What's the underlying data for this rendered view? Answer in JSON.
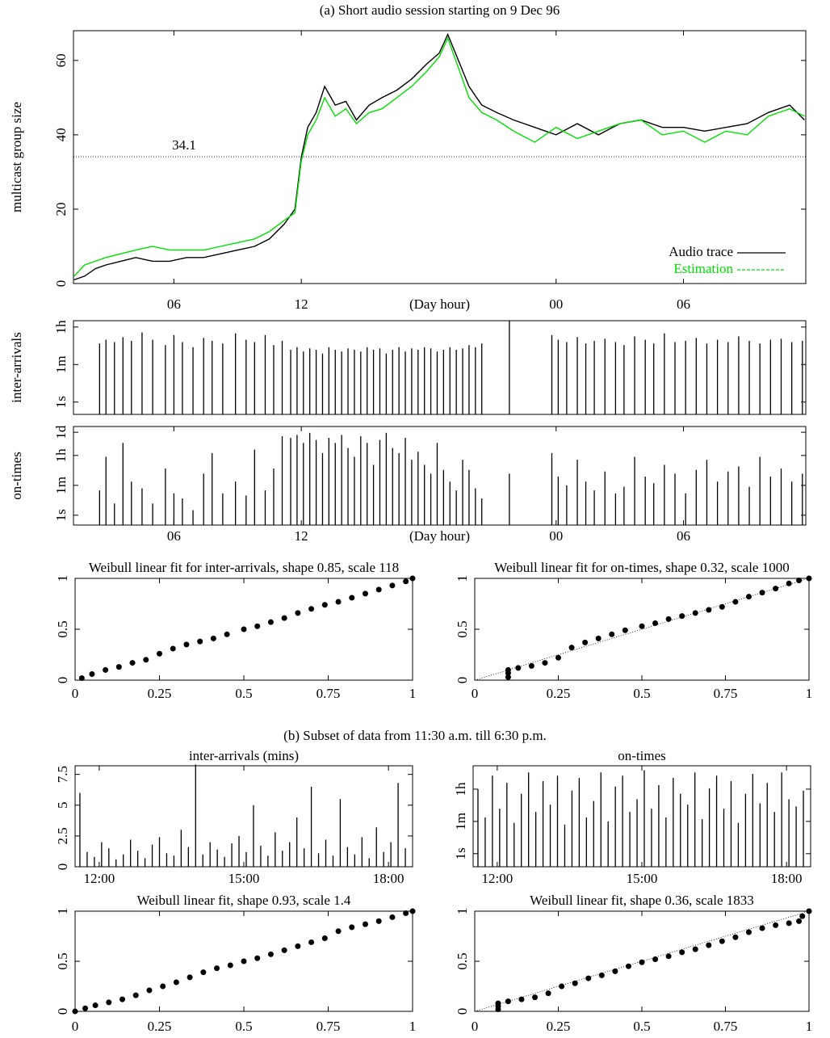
{
  "chart_data": [
    {
      "type": "line",
      "title": "(a) Short audio session starting on 9 Dec 96",
      "ylabel": "multicast group size",
      "xlabel": "(Day hour)",
      "x": [
        1.3,
        1.8,
        2.3,
        2.8,
        3.5,
        4.2,
        5,
        5.8,
        6.6,
        7.4,
        8.2,
        9,
        9.8,
        10.5,
        11.2,
        11.7,
        12,
        12.3,
        12.7,
        13.1,
        13.6,
        14.1,
        14.6,
        15.2,
        15.8,
        16.5,
        17.2,
        17.9,
        18.5,
        18.9,
        19.4,
        19.9,
        20.5,
        21.2,
        22,
        23,
        24,
        25,
        26,
        27,
        28,
        29,
        30,
        31,
        32,
        33,
        34,
        35,
        35.7
      ],
      "series": [
        {
          "name": "Audio trace",
          "color": "#000000",
          "values": [
            1,
            2,
            4,
            5,
            6,
            7,
            6,
            6,
            7,
            7,
            8,
            9,
            10,
            12,
            16,
            20,
            34,
            42,
            46,
            53,
            48,
            49,
            44,
            48,
            50,
            52,
            55,
            59,
            62,
            67,
            60,
            53,
            48,
            46,
            44,
            42,
            40,
            43,
            40,
            43,
            44,
            42,
            42,
            41,
            42,
            43,
            46,
            48,
            44
          ]
        },
        {
          "name": "Estimation",
          "color": "#00e000",
          "values": [
            2,
            5,
            6,
            7,
            8,
            9,
            10,
            9,
            9,
            9,
            10,
            11,
            12,
            14,
            17,
            19,
            33,
            40,
            44,
            50,
            45,
            47,
            43,
            46,
            47,
            50,
            53,
            57,
            61,
            66,
            58,
            50,
            46,
            44,
            41,
            38,
            42,
            39,
            41,
            43,
            44,
            40,
            41,
            38,
            41,
            40,
            45,
            47,
            45
          ]
        }
      ],
      "xlim": [
        1.27,
        35.76
      ],
      "ylim": [
        0,
        68
      ],
      "xticks": [
        {
          "value": 6,
          "label": "06"
        },
        12,
        {
          "value": 24,
          "label": "00"
        },
        {
          "value": 30,
          "label": "06"
        }
      ],
      "yticks": [
        0,
        20,
        40,
        60
      ],
      "hline": 34.1,
      "legend": "lower right"
    },
    {
      "type": "spike",
      "ylabel": "inter-arrivals",
      "log_y": true,
      "x": [
        2.5,
        2.8,
        3.2,
        3.6,
        4.0,
        4.5,
        5.0,
        5.6,
        6.0,
        6.4,
        6.9,
        7.4,
        7.8,
        8.3,
        8.9,
        9.4,
        9.8,
        10.3,
        10.7,
        11.1,
        11.5,
        11.8,
        12.1,
        12.4,
        12.7,
        13.0,
        13.3,
        13.6,
        13.9,
        14.2,
        14.5,
        14.8,
        15.1,
        15.4,
        15.7,
        16.0,
        16.3,
        16.6,
        16.9,
        17.2,
        17.5,
        17.8,
        18.1,
        18.4,
        18.7,
        19.0,
        19.3,
        19.6,
        19.9,
        20.2,
        20.5,
        21.8,
        23.8,
        24.1,
        24.5,
        25.0,
        25.4,
        25.8,
        26.3,
        26.8,
        27.2,
        27.7,
        28.2,
        28.6,
        29.1,
        29.6,
        30.1,
        30.6,
        31.1,
        31.6,
        32.1,
        32.6,
        33.1,
        33.6,
        34.1,
        34.6,
        35.1,
        35.6
      ],
      "values": [
        600,
        900,
        700,
        1200,
        800,
        2000,
        900,
        500,
        1500,
        700,
        400,
        1100,
        800,
        600,
        1800,
        900,
        700,
        1500,
        500,
        800,
        300,
        400,
        250,
        350,
        300,
        200,
        400,
        300,
        250,
        350,
        300,
        250,
        400,
        300,
        350,
        200,
        300,
        400,
        250,
        350,
        300,
        400,
        350,
        250,
        300,
        400,
        300,
        350,
        500,
        400,
        600,
        7000,
        1500,
        900,
        700,
        1200,
        600,
        800,
        1000,
        700,
        500,
        1300,
        900,
        600,
        1800,
        700,
        800,
        1100,
        600,
        900,
        700,
        1300,
        800,
        600,
        900,
        1000,
        700,
        800
      ],
      "xlim": [
        1.27,
        35.76
      ],
      "ylim": [
        0.26,
        7200
      ],
      "yticks": [
        {
          "value": 1,
          "label": "1s"
        },
        {
          "value": 60,
          "label": "1m"
        },
        {
          "value": 3600,
          "label": "1h"
        }
      ]
    },
    {
      "type": "spike",
      "ylabel": "on-times",
      "xlabel": "(Day hour)",
      "log_y": true,
      "x": [
        2.5,
        2.8,
        3.2,
        3.6,
        4.0,
        4.5,
        5.0,
        5.6,
        6.0,
        6.4,
        6.9,
        7.4,
        7.8,
        8.3,
        8.9,
        9.4,
        9.8,
        10.3,
        10.7,
        11.1,
        11.5,
        11.8,
        12.1,
        12.4,
        12.7,
        13.0,
        13.3,
        13.6,
        13.9,
        14.2,
        14.5,
        14.8,
        15.1,
        15.4,
        15.7,
        16.0,
        16.3,
        16.6,
        16.9,
        17.2,
        17.5,
        17.8,
        18.1,
        18.4,
        18.7,
        19.0,
        19.3,
        19.6,
        19.9,
        20.2,
        20.5,
        21.8,
        23.8,
        24.1,
        24.5,
        25.0,
        25.4,
        25.8,
        26.3,
        26.8,
        27.2,
        27.7,
        28.2,
        28.6,
        29.1,
        29.6,
        30.1,
        30.6,
        31.1,
        31.6,
        32.1,
        32.6,
        33.1,
        33.6,
        34.1,
        34.6,
        35.1,
        35.6
      ],
      "values": [
        30,
        3000,
        5,
        20000,
        100,
        40,
        5,
        600,
        20,
        10,
        2,
        300,
        5000,
        20,
        100,
        15,
        8000,
        30,
        600,
        50000,
        40000,
        60000,
        20000,
        80000,
        30000,
        5000,
        40000,
        20000,
        60000,
        10000,
        3000,
        50000,
        20000,
        1000,
        30000,
        80000,
        10000,
        5000,
        40000,
        2000,
        6000,
        1000,
        300,
        20000,
        500,
        100,
        30,
        2000,
        500,
        40,
        10,
        300,
        5000,
        200,
        60,
        2000,
        100,
        30,
        400,
        20,
        50,
        3000,
        200,
        80,
        1000,
        300,
        20,
        500,
        2000,
        100,
        400,
        800,
        50,
        3000,
        200,
        600,
        100,
        300
      ],
      "xlim": [
        1.27,
        35.76
      ],
      "ylim": [
        0.26,
        190000
      ],
      "xticks": [
        {
          "value": 6,
          "label": "06"
        },
        12,
        {
          "value": 24,
          "label": "00"
        },
        {
          "value": 30,
          "label": "06"
        }
      ],
      "yticks": [
        {
          "value": 1,
          "label": "1s"
        },
        {
          "value": 60,
          "label": "1m"
        },
        {
          "value": 3600,
          "label": "1h"
        },
        {
          "value": 86400,
          "label": "1d"
        }
      ]
    },
    {
      "type": "scatter",
      "title": "Weibull linear fit for inter-arrivals, shape 0.85, scale 118",
      "x": [
        0.02,
        0.05,
        0.09,
        0.13,
        0.17,
        0.21,
        0.25,
        0.29,
        0.33,
        0.37,
        0.41,
        0.45,
        0.5,
        0.54,
        0.58,
        0.62,
        0.66,
        0.7,
        0.74,
        0.78,
        0.82,
        0.86,
        0.9,
        0.94,
        0.98,
        1.0
      ],
      "values": [
        0.02,
        0.06,
        0.1,
        0.13,
        0.17,
        0.2,
        0.26,
        0.31,
        0.35,
        0.38,
        0.41,
        0.45,
        0.5,
        0.53,
        0.57,
        0.61,
        0.66,
        0.7,
        0.74,
        0.77,
        0.81,
        0.85,
        0.89,
        0.93,
        0.97,
        1.0
      ],
      "xlim": [
        0,
        1
      ],
      "ylim": [
        0,
        1
      ],
      "xticks": [
        0,
        0.25,
        0.5,
        0.75,
        1
      ],
      "yticks": [
        0,
        0.5,
        1
      ]
    },
    {
      "type": "scatter",
      "title": "Weibull linear fit for on-times, shape 0.32, scale 1000",
      "fit_line": true,
      "x": [
        0.1,
        0.1,
        0.1,
        0.13,
        0.17,
        0.21,
        0.25,
        0.29,
        0.33,
        0.37,
        0.41,
        0.45,
        0.5,
        0.54,
        0.58,
        0.62,
        0.66,
        0.7,
        0.74,
        0.78,
        0.82,
        0.86,
        0.9,
        0.94,
        0.97,
        1.0
      ],
      "values": [
        0.03,
        0.07,
        0.1,
        0.12,
        0.14,
        0.17,
        0.22,
        0.32,
        0.37,
        0.41,
        0.45,
        0.49,
        0.53,
        0.56,
        0.6,
        0.63,
        0.66,
        0.69,
        0.72,
        0.77,
        0.82,
        0.86,
        0.9,
        0.95,
        0.98,
        1.0
      ],
      "xlim": [
        0,
        1
      ],
      "ylim": [
        0,
        1
      ],
      "xticks": [
        0,
        0.25,
        0.5,
        0.75,
        1
      ],
      "yticks": [
        0,
        0.5,
        1
      ]
    },
    {
      "type": "spike",
      "section_title": "(b) Subset of data from 11:30 a.m. till 6:30 p.m.",
      "title": "inter-arrivals (mins)",
      "x": [
        11.6,
        11.75,
        11.9,
        12.05,
        12.2,
        12.35,
        12.5,
        12.65,
        12.8,
        12.95,
        13.1,
        13.25,
        13.4,
        13.55,
        13.7,
        13.85,
        14.0,
        14.15,
        14.3,
        14.45,
        14.6,
        14.75,
        14.9,
        15.05,
        15.2,
        15.35,
        15.5,
        15.65,
        15.8,
        15.95,
        16.1,
        16.25,
        16.4,
        16.55,
        16.7,
        16.85,
        17.0,
        17.15,
        17.3,
        17.45,
        17.6,
        17.75,
        17.9,
        18.05,
        18.2,
        18.35
      ],
      "values": [
        6.0,
        1.2,
        0.8,
        2.0,
        1.5,
        0.6,
        1.0,
        2.2,
        1.3,
        0.7,
        1.8,
        2.4,
        1.1,
        0.9,
        3.0,
        1.6,
        8.3,
        1.0,
        2.0,
        1.4,
        0.8,
        1.9,
        2.5,
        1.2,
        5.0,
        1.7,
        0.9,
        2.8,
        1.3,
        2.0,
        4.0,
        1.5,
        6.5,
        1.1,
        2.2,
        0.9,
        5.5,
        1.6,
        1.0,
        2.4,
        0.7,
        3.2,
        1.2,
        2.0,
        6.8,
        1.5
      ],
      "xlim": [
        11.5,
        18.5
      ],
      "ylim": [
        0,
        8.2
      ],
      "xticks": [
        {
          "value": 12,
          "label": "12:00"
        },
        {
          "value": 15,
          "label": "15:00"
        },
        {
          "value": 18,
          "label": "18:00"
        }
      ],
      "yticks": [
        0,
        2.5,
        5,
        7.5
      ]
    },
    {
      "type": "spike",
      "title": "on-times",
      "log_y": true,
      "x": [
        11.6,
        11.75,
        11.9,
        12.05,
        12.2,
        12.35,
        12.5,
        12.65,
        12.8,
        12.95,
        13.1,
        13.25,
        13.4,
        13.55,
        13.7,
        13.85,
        14.0,
        14.15,
        14.3,
        14.45,
        14.6,
        14.75,
        14.9,
        15.05,
        15.2,
        15.35,
        15.5,
        15.65,
        15.8,
        15.95,
        16.1,
        16.25,
        16.4,
        16.55,
        16.7,
        16.85,
        17.0,
        17.15,
        17.3,
        17.45,
        17.6,
        17.75,
        17.9,
        18.05,
        18.2,
        18.35
      ],
      "values": [
        3600,
        100,
        20000,
        300,
        8000,
        50,
        2000,
        30000,
        200,
        10000,
        500,
        20000,
        40,
        3000,
        15000,
        100,
        800,
        30000,
        60,
        5000,
        20000,
        200,
        1000,
        40000,
        300,
        6000,
        100,
        15000,
        2000,
        500,
        30000,
        80,
        4000,
        20000,
        300,
        10000,
        50,
        2000,
        25000,
        600,
        8000,
        200,
        30000,
        1000,
        400,
        3000
      ],
      "xlim": [
        11.5,
        18.5
      ],
      "ylim": [
        0.19,
        70000
      ],
      "xticks": [
        {
          "value": 12,
          "label": "12:00"
        },
        {
          "value": 15,
          "label": "15:00"
        },
        {
          "value": 18,
          "label": "18:00"
        }
      ],
      "yticks": [
        {
          "value": 1,
          "label": "1s"
        },
        {
          "value": 60,
          "label": "1m"
        },
        {
          "value": 3600,
          "label": "1h"
        }
      ]
    },
    {
      "type": "scatter",
      "title": "Weibull linear fit, shape 0.93, scale 1.4",
      "x": [
        0,
        0.03,
        0.06,
        0.1,
        0.14,
        0.18,
        0.22,
        0.26,
        0.3,
        0.34,
        0.38,
        0.42,
        0.46,
        0.5,
        0.54,
        0.58,
        0.62,
        0.66,
        0.7,
        0.74,
        0.78,
        0.82,
        0.86,
        0.9,
        0.94,
        0.98,
        1.0
      ],
      "values": [
        0,
        0.03,
        0.06,
        0.09,
        0.12,
        0.16,
        0.21,
        0.25,
        0.29,
        0.34,
        0.39,
        0.43,
        0.46,
        0.5,
        0.53,
        0.57,
        0.61,
        0.65,
        0.69,
        0.73,
        0.8,
        0.84,
        0.87,
        0.9,
        0.94,
        0.98,
        1.0
      ],
      "xlim": [
        0,
        1
      ],
      "ylim": [
        0,
        1
      ],
      "xticks": [
        0,
        0.25,
        0.5,
        0.75,
        1
      ],
      "yticks": [
        0,
        0.5,
        1
      ]
    },
    {
      "type": "scatter",
      "title": "Weibull linear fit, shape 0.36, scale 1833",
      "fit_line": true,
      "x": [
        0.07,
        0.07,
        0.07,
        0.1,
        0.14,
        0.18,
        0.22,
        0.26,
        0.3,
        0.34,
        0.38,
        0.42,
        0.46,
        0.5,
        0.54,
        0.58,
        0.62,
        0.66,
        0.7,
        0.74,
        0.78,
        0.82,
        0.86,
        0.9,
        0.94,
        0.97,
        0.98,
        1.0
      ],
      "values": [
        0.02,
        0.05,
        0.08,
        0.1,
        0.12,
        0.14,
        0.18,
        0.25,
        0.28,
        0.33,
        0.36,
        0.4,
        0.45,
        0.49,
        0.52,
        0.55,
        0.59,
        0.62,
        0.66,
        0.7,
        0.74,
        0.79,
        0.83,
        0.86,
        0.88,
        0.9,
        0.95,
        1.0
      ],
      "xlim": [
        0,
        1
      ],
      "ylim": [
        0,
        1
      ],
      "xticks": [
        0,
        0.25,
        0.5,
        0.75,
        1
      ],
      "yticks": [
        0,
        0.5,
        1
      ]
    }
  ]
}
